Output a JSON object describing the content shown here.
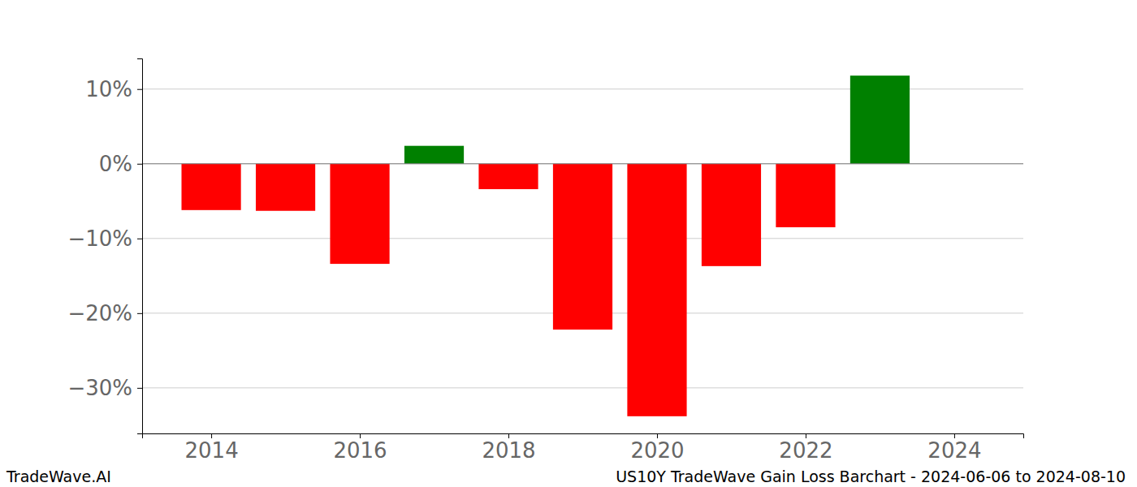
{
  "chart_data": {
    "type": "bar",
    "x": [
      2014,
      2015,
      2016,
      2017,
      2018,
      2019,
      2020,
      2021,
      2022,
      2023
    ],
    "values": [
      -6.2,
      -6.3,
      -13.4,
      2.4,
      -3.4,
      -22.2,
      -33.8,
      -13.7,
      -8.5,
      11.8
    ],
    "colors": [
      "#ff0000",
      "#ff0000",
      "#ff0000",
      "#008000",
      "#ff0000",
      "#ff0000",
      "#ff0000",
      "#ff0000",
      "#ff0000",
      "#008000"
    ],
    "xlim": [
      2013.07,
      2024.93
    ],
    "xticks": [
      2014,
      2016,
      2018,
      2020,
      2022,
      2024
    ],
    "ylim": [
      -36.1,
      14.1
    ],
    "yticks": [
      {
        "value": -30,
        "label": "−30%"
      },
      {
        "value": -20,
        "label": "−20%"
      },
      {
        "value": -10,
        "label": "−10%"
      },
      {
        "value": 0,
        "label": "0%"
      },
      {
        "value": 10,
        "label": "10%"
      }
    ],
    "grid": true,
    "annotations": [
      "TradeWave.AI",
      "US10Y TradeWave Gain Loss Barchart - 2024-06-06 to 2024-08-10"
    ]
  }
}
